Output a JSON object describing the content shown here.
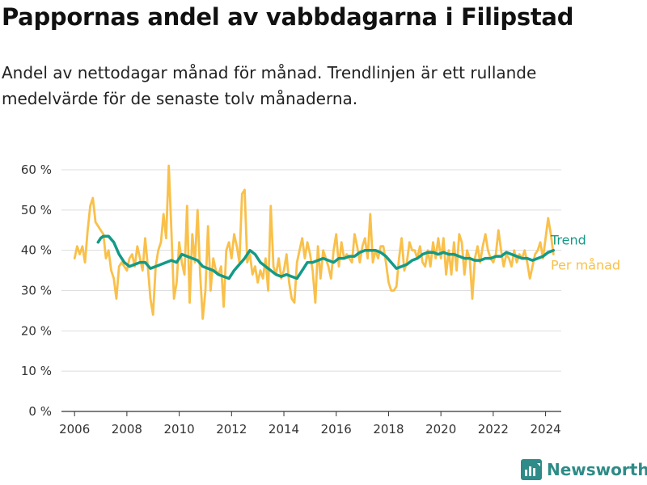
{
  "title": "Pappornas andel av vabbdagarna i Filipstad",
  "subtitle": "Andel av nettodagar månad för månad. Trendlinjen är ett rullande medelvärde för de senaste tolv månaderna.",
  "brand": "Newsworthy",
  "colors": {
    "monthly": "#f9c04a",
    "trend": "#139a86",
    "brand": "#2e8b87"
  },
  "chart_data": {
    "type": "line",
    "x_unit": "year",
    "y_unit": "percent",
    "ylim": [
      0,
      60
    ],
    "xlim": [
      2005.5,
      2024.6
    ],
    "yticks": [
      0,
      10,
      20,
      30,
      40,
      50,
      60
    ],
    "ytick_labels": [
      "0 %",
      "10 %",
      "20 %",
      "30 %",
      "40 %",
      "50 %",
      "60 %"
    ],
    "xticks": [
      2006,
      2008,
      2010,
      2012,
      2014,
      2016,
      2018,
      2020,
      2022,
      2024
    ],
    "xtick_labels": [
      "2006",
      "2008",
      "2010",
      "2012",
      "2014",
      "2016",
      "2018",
      "2020",
      "2022",
      "2024"
    ],
    "grid": true,
    "legend_position": "right-end",
    "series": [
      {
        "name": "Per månad",
        "color": "#f9c04a",
        "points": [
          [
            2006.0,
            38
          ],
          [
            2006.1,
            41
          ],
          [
            2006.2,
            39
          ],
          [
            2006.3,
            41
          ],
          [
            2006.4,
            37
          ],
          [
            2006.5,
            45
          ],
          [
            2006.6,
            51
          ],
          [
            2006.7,
            53
          ],
          [
            2006.8,
            47
          ],
          [
            2006.9,
            46
          ],
          [
            2007.0,
            45
          ],
          [
            2007.1,
            44
          ],
          [
            2007.2,
            38
          ],
          [
            2007.3,
            40
          ],
          [
            2007.4,
            35
          ],
          [
            2007.5,
            33
          ],
          [
            2007.6,
            28
          ],
          [
            2007.7,
            36
          ],
          [
            2007.8,
            37
          ],
          [
            2007.9,
            36
          ],
          [
            2008.0,
            35
          ],
          [
            2008.1,
            38
          ],
          [
            2008.2,
            39
          ],
          [
            2008.3,
            36
          ],
          [
            2008.4,
            41
          ],
          [
            2008.5,
            38
          ],
          [
            2008.6,
            35
          ],
          [
            2008.7,
            43
          ],
          [
            2008.8,
            36
          ],
          [
            2008.9,
            28
          ],
          [
            2009.0,
            24
          ],
          [
            2009.1,
            36
          ],
          [
            2009.2,
            40
          ],
          [
            2009.3,
            42
          ],
          [
            2009.4,
            49
          ],
          [
            2009.5,
            43
          ],
          [
            2009.6,
            61
          ],
          [
            2009.7,
            45
          ],
          [
            2009.8,
            28
          ],
          [
            2009.9,
            32
          ],
          [
            2010.0,
            42
          ],
          [
            2010.1,
            37
          ],
          [
            2010.2,
            34
          ],
          [
            2010.3,
            51
          ],
          [
            2010.4,
            27
          ],
          [
            2010.5,
            44
          ],
          [
            2010.6,
            37
          ],
          [
            2010.7,
            50
          ],
          [
            2010.8,
            34
          ],
          [
            2010.9,
            23
          ],
          [
            2011.0,
            30
          ],
          [
            2011.1,
            46
          ],
          [
            2011.2,
            30
          ],
          [
            2011.3,
            38
          ],
          [
            2011.4,
            35
          ],
          [
            2011.5,
            34
          ],
          [
            2011.6,
            36
          ],
          [
            2011.7,
            26
          ],
          [
            2011.8,
            40
          ],
          [
            2011.9,
            42
          ],
          [
            2012.0,
            38
          ],
          [
            2012.1,
            44
          ],
          [
            2012.2,
            41
          ],
          [
            2012.3,
            37
          ],
          [
            2012.4,
            54
          ],
          [
            2012.5,
            55
          ],
          [
            2012.6,
            37
          ],
          [
            2012.7,
            39
          ],
          [
            2012.8,
            34
          ],
          [
            2012.9,
            36
          ],
          [
            2013.0,
            32
          ],
          [
            2013.1,
            35
          ],
          [
            2013.2,
            33
          ],
          [
            2013.3,
            38
          ],
          [
            2013.4,
            30
          ],
          [
            2013.5,
            51
          ],
          [
            2013.6,
            36
          ],
          [
            2013.7,
            34
          ],
          [
            2013.8,
            38
          ],
          [
            2013.9,
            33
          ],
          [
            2014.0,
            35
          ],
          [
            2014.1,
            39
          ],
          [
            2014.2,
            32
          ],
          [
            2014.3,
            28
          ],
          [
            2014.4,
            27
          ],
          [
            2014.5,
            37
          ],
          [
            2014.6,
            40
          ],
          [
            2014.7,
            43
          ],
          [
            2014.8,
            38
          ],
          [
            2014.9,
            42
          ],
          [
            2015.0,
            39
          ],
          [
            2015.1,
            35
          ],
          [
            2015.2,
            27
          ],
          [
            2015.3,
            41
          ],
          [
            2015.4,
            33
          ],
          [
            2015.5,
            40
          ],
          [
            2015.6,
            38
          ],
          [
            2015.7,
            36
          ],
          [
            2015.8,
            33
          ],
          [
            2015.9,
            40
          ],
          [
            2016.0,
            44
          ],
          [
            2016.1,
            36
          ],
          [
            2016.2,
            42
          ],
          [
            2016.3,
            38
          ],
          [
            2016.4,
            39
          ],
          [
            2016.5,
            38
          ],
          [
            2016.6,
            37
          ],
          [
            2016.7,
            44
          ],
          [
            2016.8,
            41
          ],
          [
            2016.9,
            37
          ],
          [
            2017.0,
            41
          ],
          [
            2017.1,
            43
          ],
          [
            2017.2,
            38
          ],
          [
            2017.3,
            49
          ],
          [
            2017.4,
            37
          ],
          [
            2017.5,
            40
          ],
          [
            2017.6,
            38
          ],
          [
            2017.7,
            41
          ],
          [
            2017.8,
            41
          ],
          [
            2017.9,
            37
          ],
          [
            2018.0,
            32
          ],
          [
            2018.1,
            30
          ],
          [
            2018.2,
            30
          ],
          [
            2018.3,
            31
          ],
          [
            2018.4,
            38
          ],
          [
            2018.5,
            43
          ],
          [
            2018.6,
            35
          ],
          [
            2018.7,
            37
          ],
          [
            2018.8,
            42
          ],
          [
            2018.9,
            40
          ],
          [
            2019.0,
            40
          ],
          [
            2019.1,
            38
          ],
          [
            2019.2,
            41
          ],
          [
            2019.3,
            37
          ],
          [
            2019.4,
            36
          ],
          [
            2019.5,
            40
          ],
          [
            2019.6,
            36
          ],
          [
            2019.7,
            42
          ],
          [
            2019.8,
            38
          ],
          [
            2019.9,
            43
          ],
          [
            2020.0,
            38
          ],
          [
            2020.1,
            43
          ],
          [
            2020.2,
            34
          ],
          [
            2020.3,
            40
          ],
          [
            2020.4,
            34
          ],
          [
            2020.5,
            42
          ],
          [
            2020.6,
            35
          ],
          [
            2020.7,
            44
          ],
          [
            2020.8,
            42
          ],
          [
            2020.9,
            34
          ],
          [
            2021.0,
            40
          ],
          [
            2021.1,
            38
          ],
          [
            2021.2,
            28
          ],
          [
            2021.3,
            38
          ],
          [
            2021.4,
            41
          ],
          [
            2021.5,
            37
          ],
          [
            2021.6,
            41
          ],
          [
            2021.7,
            44
          ],
          [
            2021.8,
            40
          ],
          [
            2021.9,
            38
          ],
          [
            2022.0,
            37
          ],
          [
            2022.1,
            39
          ],
          [
            2022.2,
            45
          ],
          [
            2022.3,
            40
          ],
          [
            2022.4,
            36
          ],
          [
            2022.5,
            39
          ],
          [
            2022.6,
            38
          ],
          [
            2022.7,
            36
          ],
          [
            2022.8,
            40
          ],
          [
            2022.9,
            37
          ],
          [
            2023.0,
            39
          ],
          [
            2023.1,
            38
          ],
          [
            2023.2,
            40
          ],
          [
            2023.3,
            37
          ],
          [
            2023.4,
            33
          ],
          [
            2023.5,
            36
          ],
          [
            2023.6,
            39
          ],
          [
            2023.7,
            40
          ],
          [
            2023.8,
            42
          ],
          [
            2023.9,
            38
          ],
          [
            2024.0,
            43
          ],
          [
            2024.1,
            48
          ],
          [
            2024.2,
            44
          ],
          [
            2024.3,
            39
          ]
        ]
      },
      {
        "name": "Trend",
        "color": "#139a86",
        "points": [
          [
            2006.9,
            42
          ],
          [
            2007.0,
            43
          ],
          [
            2007.1,
            43.5
          ],
          [
            2007.3,
            43.5
          ],
          [
            2007.5,
            42
          ],
          [
            2007.7,
            39
          ],
          [
            2007.9,
            37
          ],
          [
            2008.1,
            36
          ],
          [
            2008.3,
            36.5
          ],
          [
            2008.5,
            37
          ],
          [
            2008.7,
            37
          ],
          [
            2008.9,
            35.5
          ],
          [
            2009.1,
            36
          ],
          [
            2009.3,
            36.5
          ],
          [
            2009.5,
            37
          ],
          [
            2009.7,
            37.5
          ],
          [
            2009.9,
            37
          ],
          [
            2010.1,
            39
          ],
          [
            2010.3,
            38.5
          ],
          [
            2010.5,
            38
          ],
          [
            2010.7,
            37.5
          ],
          [
            2010.9,
            36
          ],
          [
            2011.1,
            35.5
          ],
          [
            2011.3,
            35
          ],
          [
            2011.5,
            34
          ],
          [
            2011.7,
            33.5
          ],
          [
            2011.9,
            33
          ],
          [
            2012.1,
            35
          ],
          [
            2012.3,
            36.5
          ],
          [
            2012.5,
            38
          ],
          [
            2012.7,
            40
          ],
          [
            2012.9,
            39
          ],
          [
            2013.1,
            37
          ],
          [
            2013.3,
            36
          ],
          [
            2013.5,
            35
          ],
          [
            2013.7,
            34
          ],
          [
            2013.9,
            33.5
          ],
          [
            2014.1,
            34
          ],
          [
            2014.3,
            33.5
          ],
          [
            2014.5,
            33
          ],
          [
            2014.7,
            35
          ],
          [
            2014.9,
            37
          ],
          [
            2015.1,
            37
          ],
          [
            2015.3,
            37.5
          ],
          [
            2015.5,
            38
          ],
          [
            2015.7,
            37.5
          ],
          [
            2015.9,
            37
          ],
          [
            2016.1,
            38
          ],
          [
            2016.3,
            38
          ],
          [
            2016.5,
            38.5
          ],
          [
            2016.7,
            38.5
          ],
          [
            2016.9,
            39.5
          ],
          [
            2017.1,
            40
          ],
          [
            2017.3,
            40
          ],
          [
            2017.5,
            40
          ],
          [
            2017.7,
            39.5
          ],
          [
            2017.9,
            38.5
          ],
          [
            2018.1,
            37
          ],
          [
            2018.3,
            35.5
          ],
          [
            2018.5,
            36
          ],
          [
            2018.7,
            36.5
          ],
          [
            2018.9,
            37.5
          ],
          [
            2019.1,
            38
          ],
          [
            2019.3,
            39
          ],
          [
            2019.5,
            39.5
          ],
          [
            2019.7,
            39.5
          ],
          [
            2019.9,
            39
          ],
          [
            2020.1,
            39.5
          ],
          [
            2020.3,
            39
          ],
          [
            2020.5,
            39
          ],
          [
            2020.7,
            38.5
          ],
          [
            2020.9,
            38
          ],
          [
            2021.1,
            38
          ],
          [
            2021.3,
            37.5
          ],
          [
            2021.5,
            37.5
          ],
          [
            2021.7,
            38
          ],
          [
            2021.9,
            38
          ],
          [
            2022.1,
            38.5
          ],
          [
            2022.3,
            38.5
          ],
          [
            2022.5,
            39.5
          ],
          [
            2022.7,
            39
          ],
          [
            2022.9,
            38.5
          ],
          [
            2023.1,
            38
          ],
          [
            2023.3,
            38
          ],
          [
            2023.5,
            37.5
          ],
          [
            2023.7,
            38
          ],
          [
            2023.9,
            38.5
          ],
          [
            2024.1,
            39.5
          ],
          [
            2024.3,
            40
          ]
        ]
      }
    ]
  }
}
